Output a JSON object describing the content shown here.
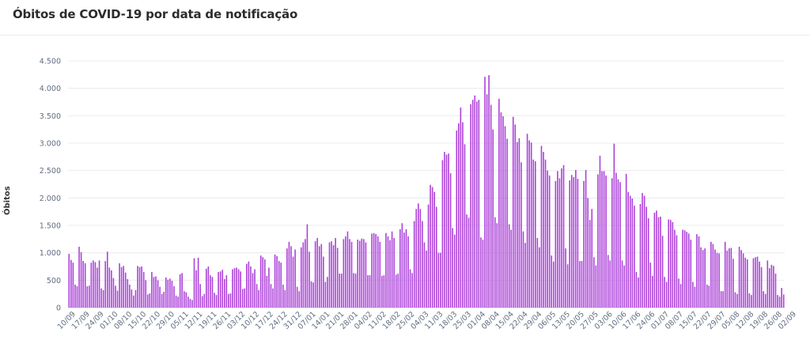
{
  "title": "Óbitos de COVID-19 por data de notificação",
  "colors": {
    "bar": "#ab40d8",
    "grid": "#ececf0",
    "axis": "#d7dbe2",
    "tick": "#5f6d80"
  },
  "chart_data": {
    "type": "bar",
    "title": "Óbitos de COVID-19 por data de notificação",
    "xlabel": "",
    "ylabel": "Óbitos",
    "ylim": [
      0,
      4500
    ],
    "yticks": [
      0,
      500,
      1000,
      1500,
      2000,
      2500,
      3000,
      3500,
      4000,
      4500
    ],
    "ytick_labels": [
      "0",
      "500",
      "1.000",
      "1.500",
      "2.000",
      "2.500",
      "3.000",
      "3.500",
      "4.000",
      "4.500"
    ],
    "grid": true,
    "x_tick_every": 7,
    "x_tick_labels": [
      "10/09",
      "17/09",
      "24/09",
      "01/10",
      "08/10",
      "15/10",
      "22/10",
      "29/10",
      "05/11",
      "12/11",
      "19/11",
      "26/11",
      "03/12",
      "10/12",
      "17/12",
      "24/12",
      "31/12",
      "07/01",
      "14/01",
      "21/01",
      "28/01",
      "04/02",
      "11/02",
      "18/02",
      "25/02",
      "04/03",
      "11/03",
      "18/03",
      "25/03",
      "01/04",
      "08/04",
      "15/04",
      "22/04",
      "29/04",
      "06/05",
      "13/05",
      "20/05",
      "27/05",
      "03/06",
      "10/06",
      "17/06",
      "24/06",
      "01/07",
      "08/07",
      "15/07",
      "22/07",
      "29/07",
      "05/08",
      "12/08",
      "19/08",
      "26/08",
      "02/09"
    ],
    "values": [
      980,
      870,
      820,
      420,
      390,
      1110,
      1010,
      850,
      810,
      390,
      400,
      820,
      860,
      830,
      730,
      860,
      350,
      320,
      850,
      1020,
      730,
      680,
      540,
      400,
      310,
      810,
      740,
      760,
      640,
      520,
      420,
      330,
      220,
      320,
      760,
      740,
      750,
      650,
      500,
      240,
      260,
      650,
      560,
      570,
      500,
      380,
      250,
      290,
      550,
      510,
      530,
      490,
      390,
      220,
      200,
      610,
      630,
      300,
      280,
      200,
      160,
      140,
      900,
      680,
      910,
      430,
      210,
      250,
      710,
      750,
      590,
      560,
      270,
      230,
      650,
      660,
      690,
      520,
      590,
      250,
      260,
      700,
      720,
      730,
      700,
      660,
      340,
      350,
      800,
      840,
      750,
      630,
      700,
      430,
      320,
      950,
      920,
      880,
      580,
      730,
      430,
      350,
      970,
      940,
      850,
      820,
      420,
      320,
      1080,
      1200,
      1120,
      930,
      1060,
      380,
      300,
      1100,
      1190,
      1250,
      1520,
      1020,
      480,
      460,
      1210,
      1270,
      1120,
      1160,
      930,
      470,
      560,
      1190,
      1210,
      1140,
      1270,
      1090,
      620,
      620,
      1250,
      1300,
      1390,
      1250,
      1200,
      630,
      620,
      1240,
      1220,
      1260,
      1250,
      1190,
      590,
      590,
      1350,
      1360,
      1340,
      1300,
      1200,
      580,
      590,
      1360,
      1300,
      1230,
      1390,
      1270,
      600,
      620,
      1430,
      1540,
      1370,
      1430,
      1300,
      700,
      630,
      1580,
      1800,
      1900,
      1800,
      1580,
      1190,
      1040,
      1880,
      2240,
      2200,
      2110,
      1840,
      1000,
      1000,
      2690,
      2840,
      2790,
      2810,
      2450,
      1450,
      1330,
      3230,
      3360,
      3650,
      3380,
      2980,
      1700,
      1640,
      3710,
      3790,
      3870,
      3760,
      3790,
      1280,
      1240,
      4210,
      3890,
      4240,
      3700,
      3250,
      1650,
      1540,
      3810,
      3560,
      3490,
      3310,
      3080,
      1520,
      1420,
      3480,
      3340,
      3020,
      3090,
      2650,
      1390,
      1180,
      3170,
      3050,
      3010,
      2700,
      2670,
      1270,
      1100,
      2950,
      2840,
      2700,
      2500,
      2410,
      950,
      840,
      2310,
      2490,
      2360,
      2540,
      2600,
      1080,
      790,
      2320,
      2420,
      2380,
      2510,
      2350,
      850,
      850,
      2310,
      2510,
      2000,
      1600,
      1800,
      920,
      770,
      2430,
      2770,
      2490,
      2490,
      2410,
      960,
      860,
      2360,
      2990,
      2460,
      2340,
      2290,
      860,
      770,
      2440,
      2110,
      2040,
      1990,
      1860,
      650,
      550,
      1890,
      2090,
      2040,
      1840,
      1630,
      820,
      580,
      1730,
      1770,
      1650,
      1660,
      1310,
      560,
      470,
      1610,
      1600,
      1560,
      1420,
      1320,
      530,
      430,
      1420,
      1410,
      1380,
      1350,
      1240,
      470,
      380,
      1340,
      1300,
      1100,
      1050,
      1080,
      420,
      400,
      1200,
      1160,
      1060,
      1000,
      990,
      300,
      300,
      1200,
      1040,
      1080,
      1090,
      890,
      280,
      250,
      1110,
      1050,
      990,
      910,
      880,
      260,
      230,
      900,
      920,
      930,
      840,
      740,
      300,
      250,
      860,
      720,
      780,
      760,
      620,
      230,
      200,
      360,
      240
    ]
  },
  "layout_note": ""
}
